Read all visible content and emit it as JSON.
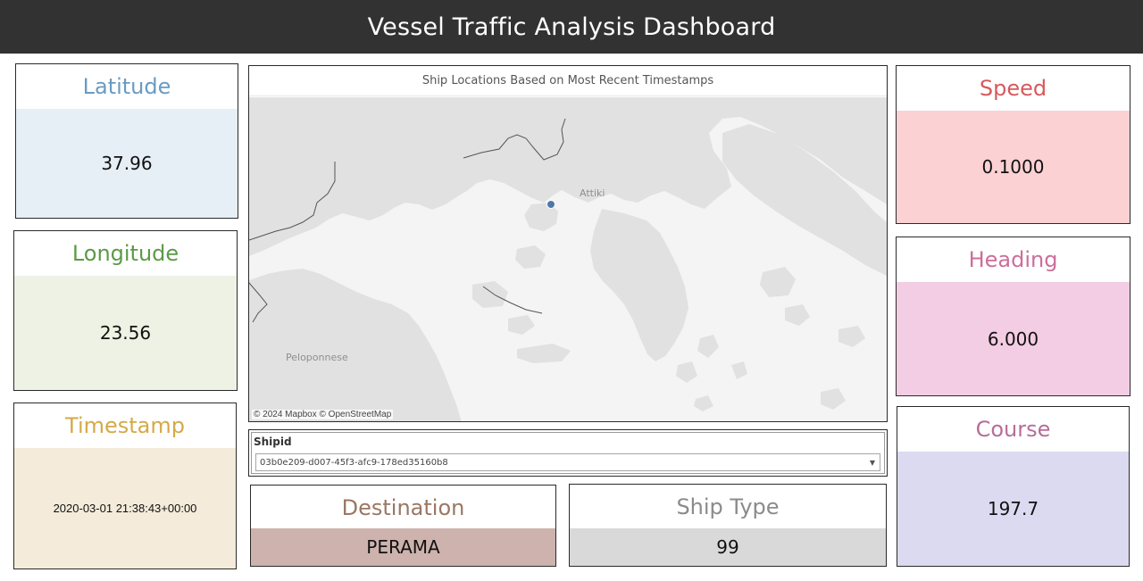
{
  "header": {
    "title": "Vessel Traffic Analysis Dashboard"
  },
  "left_cards": {
    "latitude": {
      "label": "Latitude",
      "value": "37.96",
      "title_color": "#6a9bc2",
      "bg": "#e6eef6"
    },
    "longitude": {
      "label": "Longitude",
      "value": "23.56",
      "title_color": "#5b9a47",
      "bg": "#eef2e4"
    },
    "timestamp": {
      "label": "Timestamp",
      "value": "2020-03-01 21:38:43+00:00",
      "title_color": "#d4aa48",
      "bg": "#f4ebdb"
    }
  },
  "map": {
    "title": "Ship Locations Based on Most Recent Timestamps",
    "labels": {
      "attiki": "Attiki",
      "peloponnese": "Peloponnese"
    },
    "attribution": "© 2024 Mapbox © OpenStreetMap",
    "marker_color": "#4e79a7"
  },
  "filter": {
    "label": "Shipid",
    "selected": "03b0e209-d007-45f3-afc9-178ed35160b8"
  },
  "bottom_cards": {
    "destination": {
      "label": "Destination",
      "value": "PERAMA",
      "title_color": "#9a7763",
      "bg": "#cdb2ad"
    },
    "ship_type": {
      "label": "Ship Type",
      "value": "99",
      "title_color": "#8b8b8b",
      "bg": "#d9d9d9"
    }
  },
  "right_cards": {
    "speed": {
      "label": "Speed",
      "value": "0.1000",
      "title_color": "#d65a5d",
      "bg": "#fcd1d3"
    },
    "heading": {
      "label": "Heading",
      "value": "6.000",
      "title_color": "#cd6e9b",
      "bg": "#f3cde3"
    },
    "course": {
      "label": "Course",
      "value": "197.7",
      "title_color": "#b86d98",
      "bg": "#dcdaf1"
    }
  }
}
